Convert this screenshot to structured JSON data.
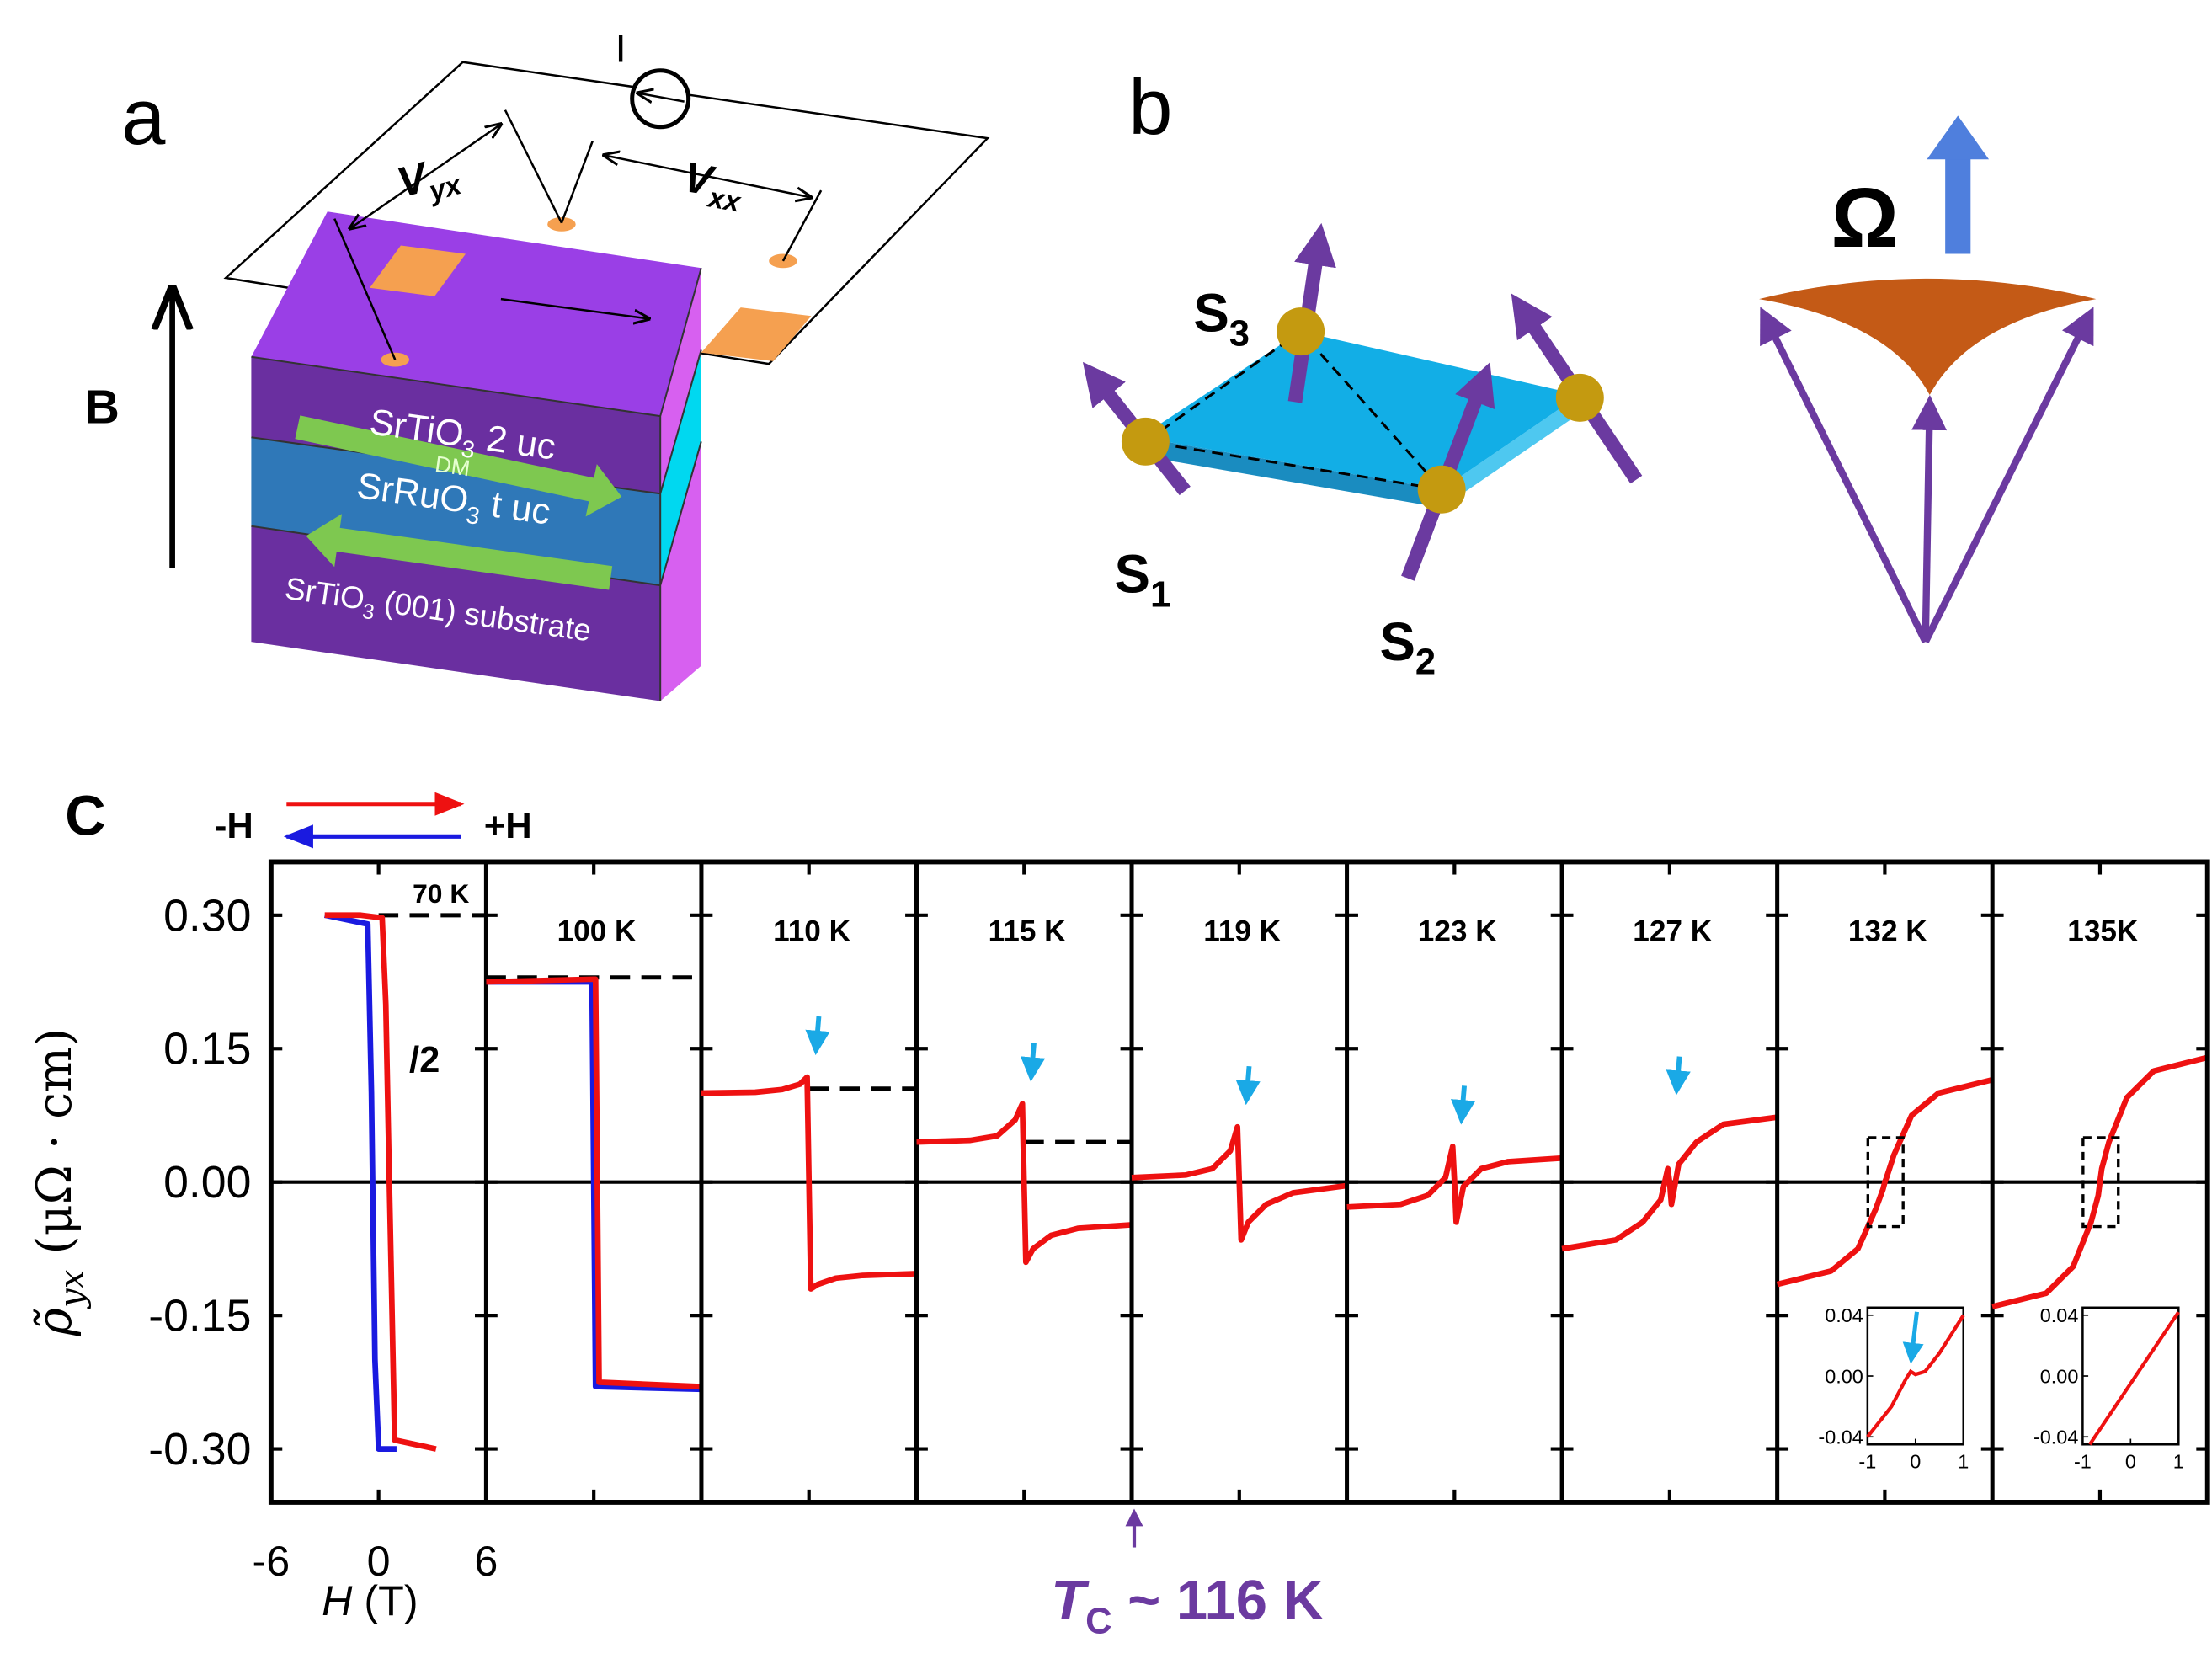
{
  "panel_a": {
    "label": "a",
    "current": "I",
    "vyx": {
      "main": "V",
      "sub": "yx"
    },
    "vxx": {
      "main": "V",
      "sub": "xx"
    },
    "field": "B",
    "layers": [
      {
        "main": "SrTiO",
        "sub": "3",
        "rest": " 2 uc"
      },
      {
        "main": "SrRuO",
        "sub": "3",
        "rest": "  t uc"
      },
      {
        "main": "SrTiO",
        "sub": "3",
        "rest": " (001) substrate"
      }
    ],
    "dm": "DM"
  },
  "panel_b": {
    "label": "b",
    "spins": [
      {
        "main": "S",
        "sub": "1"
      },
      {
        "main": "S",
        "sub": "2"
      },
      {
        "main": "S",
        "sub": "3"
      }
    ],
    "omega": "Ω"
  },
  "chart_data": {
    "type": "line",
    "label": "C",
    "ylabel": {
      "main": "ρ̃",
      "sub": "yx",
      "rest": " (μΩ · cm)"
    },
    "xlabel": {
      "main": "H",
      "rest": " (T)"
    },
    "legend": [
      {
        "name": "-H",
        "color": "#1a1ae0"
      },
      {
        "name": "+H",
        "color": "#ee1111"
      }
    ],
    "ylim": [
      -0.36,
      0.36
    ],
    "yticks": [
      {
        "value": 0.3,
        "label": "0.30"
      },
      0.15,
      {
        "value": 0,
        "label": "0.00"
      },
      -0.15,
      {
        "value": -0.3,
        "label": "-0.30"
      }
    ],
    "xlim": [
      -6,
      6
    ],
    "xticks": [
      -6,
      0,
      6
    ],
    "zero_line": true,
    "annotation": "/2",
    "tc": {
      "main": "T",
      "sub": "C",
      "rest": " ~ 116 K"
    },
    "panels": [
      {
        "title": "70 K",
        "dashed": 0.3,
        "series": [
          {
            "color": "#1a1ae0",
            "x": [
              -3,
              -0.6,
              -0.4,
              -0.2,
              0,
              1
            ],
            "values": [
              0.3,
              0.29,
              0.1,
              -0.2,
              -0.3,
              -0.3
            ]
          },
          {
            "color": "#ee1111",
            "x": [
              -3,
              -1,
              0.2,
              0.4,
              0.6,
              0.9,
              3.2
            ],
            "values": [
              0.3,
              0.3,
              0.297,
              0.2,
              0,
              -0.29,
              -0.3
            ]
          }
        ]
      },
      {
        "title": "100 K",
        "dashed": 0.23,
        "series": [
          {
            "color": "#1a1ae0",
            "x": [
              -6,
              -0.1,
              0.1,
              6
            ],
            "values": [
              0.225,
              0.225,
              -0.23,
              -0.233
            ]
          },
          {
            "color": "#ee1111",
            "x": [
              -6,
              0,
              0.1,
              0.3,
              6
            ],
            "values": [
              0.225,
              0.228,
              0.228,
              -0.225,
              -0.23
            ]
          }
        ]
      },
      {
        "title": "110 K",
        "dashed": 0.105,
        "arrow": true,
        "series": [
          {
            "color": "#ee1111",
            "x": [
              -6,
              -3,
              -1.5,
              -0.5,
              -0.1,
              0,
              0.1,
              0.5,
              1.5,
              3,
              6
            ],
            "values": [
              0.1,
              0.101,
              0.104,
              0.11,
              0.118,
              0,
              -0.12,
              -0.115,
              -0.108,
              -0.105,
              -0.103
            ]
          }
        ]
      },
      {
        "title": "115 K",
        "dashed": 0.045,
        "arrow": true,
        "series": [
          {
            "color": "#ee1111",
            "x": [
              -6,
              -3,
              -1.5,
              -0.5,
              -0.1,
              0,
              0.1,
              0.5,
              1.5,
              3,
              6
            ],
            "values": [
              0.045,
              0.047,
              0.052,
              0.07,
              0.088,
              0,
              -0.09,
              -0.075,
              -0.06,
              -0.052,
              -0.048
            ]
          }
        ]
      },
      {
        "title": "119 K",
        "arrow": true,
        "series": [
          {
            "color": "#ee1111",
            "x": [
              -6,
              -3,
              -1.5,
              -0.5,
              -0.1,
              0,
              0.1,
              0.5,
              1.5,
              3,
              6
            ],
            "values": [
              0.005,
              0.008,
              0.015,
              0.035,
              0.062,
              0,
              -0.065,
              -0.045,
              -0.025,
              -0.012,
              -0.004
            ]
          }
        ]
      },
      {
        "title": "123 K",
        "arrow": true,
        "series": [
          {
            "color": "#ee1111",
            "x": [
              -6,
              -3,
              -1.5,
              -0.5,
              -0.1,
              0,
              0.1,
              0.5,
              1.5,
              3,
              6
            ],
            "values": [
              -0.028,
              -0.025,
              -0.015,
              0.005,
              0.04,
              0,
              -0.045,
              -0.005,
              0.015,
              0.023,
              0.027
            ]
          }
        ]
      },
      {
        "title": "127 K",
        "arrow": true,
        "series": [
          {
            "color": "#ee1111",
            "x": [
              -6,
              -3,
              -1.5,
              -0.5,
              -0.1,
              0,
              0.1,
              0.5,
              1.5,
              3,
              6
            ],
            "values": [
              -0.075,
              -0.065,
              -0.045,
              -0.02,
              0.015,
              0,
              -0.025,
              0.02,
              0.045,
              0.065,
              0.073
            ]
          }
        ]
      },
      {
        "title": "132 K",
        "series": [
          {
            "color": "#ee1111",
            "x": [
              -6,
              -3,
              -1.5,
              -0.5,
              -0.1,
              0,
              0.1,
              0.5,
              1.5,
              3,
              6
            ],
            "values": [
              -0.115,
              -0.1,
              -0.075,
              -0.03,
              -0.008,
              0,
              0.005,
              0.03,
              0.075,
              0.1,
              0.115
            ]
          }
        ],
        "inset": {
          "ylim": [
            -0.045,
            0.045
          ],
          "yticks": [
            {
              "value": 0.04,
              "label": "0.04"
            },
            {
              "value": 0,
              "label": "0.00"
            },
            {
              "value": -0.04,
              "label": "-0.04"
            }
          ],
          "xlim": [
            -1,
            1
          ],
          "xticks": [
            -1,
            0,
            1
          ],
          "arrow": true,
          "x": [
            -1,
            -0.5,
            -0.2,
            -0.1,
            0,
            0.2,
            0.5,
            1
          ],
          "values": [
            -0.04,
            -0.02,
            -0.002,
            0.003,
            0.001,
            0.003,
            0.015,
            0.04
          ]
        }
      },
      {
        "title": "135K",
        "series": [
          {
            "color": "#ee1111",
            "x": [
              -6,
              -3,
              -1.5,
              -0.5,
              -0.1,
              0,
              0.1,
              0.5,
              1.5,
              3,
              6
            ],
            "values": [
              -0.14,
              -0.125,
              -0.095,
              -0.045,
              -0.015,
              0,
              0.015,
              0.045,
              0.095,
              0.125,
              0.14
            ]
          }
        ],
        "inset": {
          "ylim": [
            -0.045,
            0.045
          ],
          "yticks": [
            {
              "value": 0.04,
              "label": "0.04"
            },
            {
              "value": 0,
              "label": "0.00"
            },
            {
              "value": -0.04,
              "label": "-0.04"
            }
          ],
          "xlim": [
            -1,
            1
          ],
          "xticks": [
            -1,
            0,
            1
          ],
          "x": [
            -0.85,
            1
          ],
          "values": [
            -0.045,
            0.042
          ]
        }
      }
    ]
  }
}
